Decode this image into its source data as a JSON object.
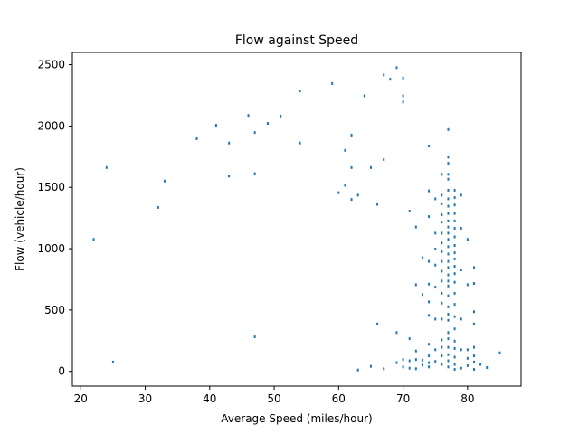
{
  "chart_data": {
    "type": "scatter",
    "title": "Flow against Speed",
    "xlabel": "Average Speed (miles/hour)",
    "ylabel": "Flow (vehicle/hour)",
    "xlim": [
      18.7,
      88.3
    ],
    "ylim": [
      -120,
      2600
    ],
    "xticks": [
      20,
      30,
      40,
      50,
      60,
      70,
      80
    ],
    "yticks": [
      0,
      500,
      1000,
      1500,
      2000,
      2500
    ],
    "grid": false,
    "marker_color": "#1f77b4",
    "series": [
      {
        "points": [
          [
            22,
            1080
          ],
          [
            24,
            1665
          ],
          [
            25,
            80
          ],
          [
            32,
            1340
          ],
          [
            33,
            1555
          ],
          [
            38,
            1900
          ],
          [
            41,
            2010
          ],
          [
            43,
            1865
          ],
          [
            43,
            1595
          ],
          [
            46,
            2090
          ],
          [
            47,
            1950
          ],
          [
            47,
            1615
          ],
          [
            47,
            285
          ],
          [
            49,
            2025
          ],
          [
            51,
            2085
          ],
          [
            54,
            2290
          ],
          [
            54,
            1865
          ],
          [
            59,
            2350
          ],
          [
            60,
            1460
          ],
          [
            61,
            1805
          ],
          [
            61,
            1520
          ],
          [
            62,
            1930
          ],
          [
            62,
            1665
          ],
          [
            62,
            1405
          ],
          [
            63,
            1440
          ],
          [
            63,
            15
          ],
          [
            64,
            2250
          ],
          [
            65,
            1665
          ],
          [
            65,
            45
          ],
          [
            66,
            1365
          ],
          [
            66,
            390
          ],
          [
            67,
            2420
          ],
          [
            67,
            1730
          ],
          [
            67,
            25
          ],
          [
            68,
            2385
          ],
          [
            69,
            2480
          ],
          [
            69,
            320
          ],
          [
            69,
            75
          ],
          [
            70,
            2395
          ],
          [
            70,
            2250
          ],
          [
            70,
            2200
          ],
          [
            70,
            100
          ],
          [
            70,
            40
          ],
          [
            71,
            1310
          ],
          [
            71,
            270
          ],
          [
            71,
            90
          ],
          [
            71,
            30
          ],
          [
            72,
            1180
          ],
          [
            72,
            710
          ],
          [
            72,
            170
          ],
          [
            72,
            100
          ],
          [
            72,
            25
          ],
          [
            73,
            930
          ],
          [
            73,
            630
          ],
          [
            73,
            95
          ],
          [
            73,
            55
          ],
          [
            74,
            1840
          ],
          [
            74,
            1475
          ],
          [
            74,
            1265
          ],
          [
            74,
            900
          ],
          [
            74,
            715
          ],
          [
            74,
            570
          ],
          [
            74,
            460
          ],
          [
            74,
            225
          ],
          [
            74,
            130
          ],
          [
            74,
            75
          ],
          [
            74,
            40
          ],
          [
            75,
            1410
          ],
          [
            75,
            1130
          ],
          [
            75,
            1000
          ],
          [
            75,
            870
          ],
          [
            75,
            690
          ],
          [
            75,
            430
          ],
          [
            75,
            180
          ],
          [
            75,
            85
          ],
          [
            76,
            1610
          ],
          [
            76,
            1440
          ],
          [
            76,
            1370
          ],
          [
            76,
            1280
          ],
          [
            76,
            1220
          ],
          [
            76,
            1130
          ],
          [
            76,
            1050
          ],
          [
            76,
            980
          ],
          [
            76,
            900
          ],
          [
            76,
            820
          ],
          [
            76,
            740
          ],
          [
            76,
            640
          ],
          [
            76,
            560
          ],
          [
            76,
            430
          ],
          [
            76,
            260
          ],
          [
            76,
            200
          ],
          [
            76,
            130
          ],
          [
            76,
            60
          ],
          [
            77,
            1750
          ],
          [
            77,
            1700
          ],
          [
            77,
            1610
          ],
          [
            77,
            1570
          ],
          [
            77,
            1480
          ],
          [
            77,
            1410
          ],
          [
            77,
            1350
          ],
          [
            77,
            1290
          ],
          [
            77,
            1230
          ],
          [
            77,
            1180
          ],
          [
            77,
            1130
          ],
          [
            77,
            1080
          ],
          [
            77,
            1020
          ],
          [
            77,
            960
          ],
          [
            77,
            900
          ],
          [
            77,
            850
          ],
          [
            77,
            790
          ],
          [
            77,
            740
          ],
          [
            77,
            700
          ],
          [
            77,
            620
          ],
          [
            77,
            530
          ],
          [
            77,
            470
          ],
          [
            77,
            420
          ],
          [
            77,
            320
          ],
          [
            77,
            270
          ],
          [
            77,
            200
          ],
          [
            77,
            140
          ],
          [
            77,
            90
          ],
          [
            77,
            40
          ],
          [
            77,
            1975
          ],
          [
            78,
            1480
          ],
          [
            78,
            1420
          ],
          [
            78,
            1360
          ],
          [
            78,
            1290
          ],
          [
            78,
            1230
          ],
          [
            78,
            1170
          ],
          [
            78,
            1100
          ],
          [
            78,
            1030
          ],
          [
            78,
            970
          ],
          [
            78,
            920
          ],
          [
            78,
            860
          ],
          [
            78,
            800
          ],
          [
            78,
            730
          ],
          [
            78,
            640
          ],
          [
            78,
            550
          ],
          [
            78,
            450
          ],
          [
            78,
            350
          ],
          [
            78,
            250
          ],
          [
            78,
            190
          ],
          [
            78,
            120
          ],
          [
            78,
            60
          ],
          [
            78,
            20
          ],
          [
            79,
            1440
          ],
          [
            79,
            1170
          ],
          [
            79,
            830
          ],
          [
            79,
            430
          ],
          [
            79,
            180
          ],
          [
            79,
            30
          ],
          [
            80,
            1080
          ],
          [
            80,
            710
          ],
          [
            80,
            180
          ],
          [
            80,
            110
          ],
          [
            80,
            50
          ],
          [
            81,
            850
          ],
          [
            81,
            720
          ],
          [
            81,
            490
          ],
          [
            81,
            390
          ],
          [
            81,
            200
          ],
          [
            81,
            130
          ],
          [
            81,
            80
          ],
          [
            81,
            20
          ],
          [
            82,
            60
          ],
          [
            83,
            35
          ],
          [
            85,
            155
          ]
        ]
      }
    ]
  }
}
